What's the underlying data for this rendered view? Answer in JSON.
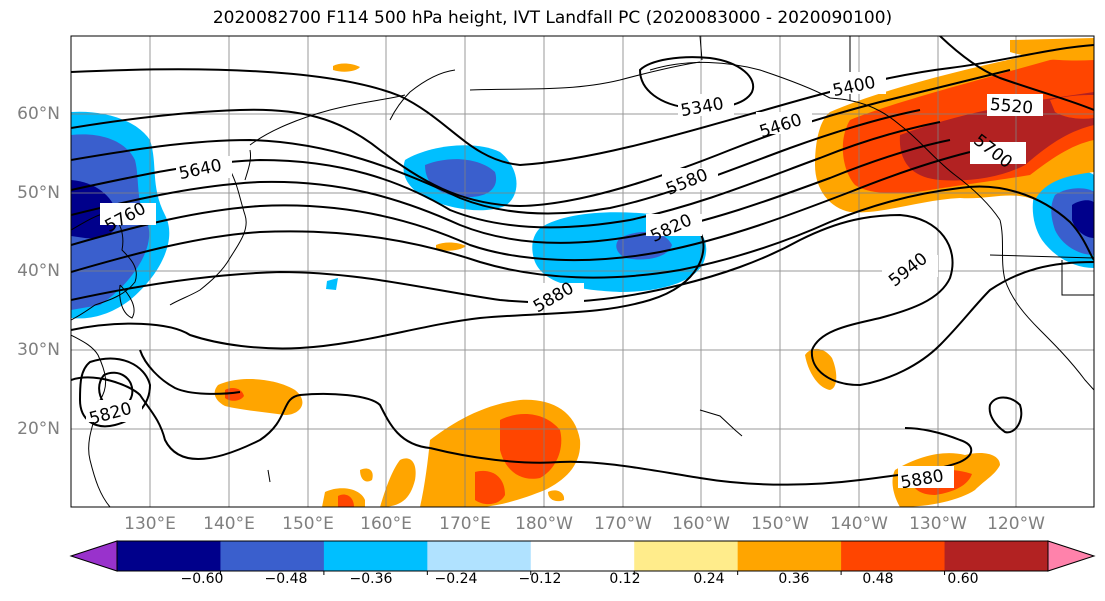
{
  "title": "2020082700 F114 500 hPa height, IVT Landfall PC (2020083000 - 2020090100)",
  "lat_labels": [
    "60°N",
    "50°N",
    "40°N",
    "30°N",
    "20°N"
  ],
  "lon_labels": [
    "130°E",
    "140°E",
    "150°E",
    "160°E",
    "170°E",
    "180°W",
    "170°W",
    "160°W",
    "150°W",
    "140°W",
    "130°W",
    "120°W"
  ],
  "contour_labels": [
    "5400",
    "5520",
    "5340",
    "5460",
    "5640",
    "5700",
    "5580",
    "5760",
    "5820",
    "5940",
    "5880",
    "5820",
    "5880"
  ],
  "colorbar": {
    "ticks": [
      "−0.60",
      "−0.48",
      "−0.36",
      "−0.24",
      "−0.12",
      "0.12",
      "0.24",
      "0.36",
      "0.48",
      "0.60"
    ],
    "colors": [
      "#9932cc",
      "#00008b",
      "#3a5fcd",
      "#00bfff",
      "#b0e2ff",
      "#ffffff",
      "#ffec8b",
      "#ffa500",
      "#ff4500",
      "#b22222",
      "#ff82ab"
    ]
  }
}
